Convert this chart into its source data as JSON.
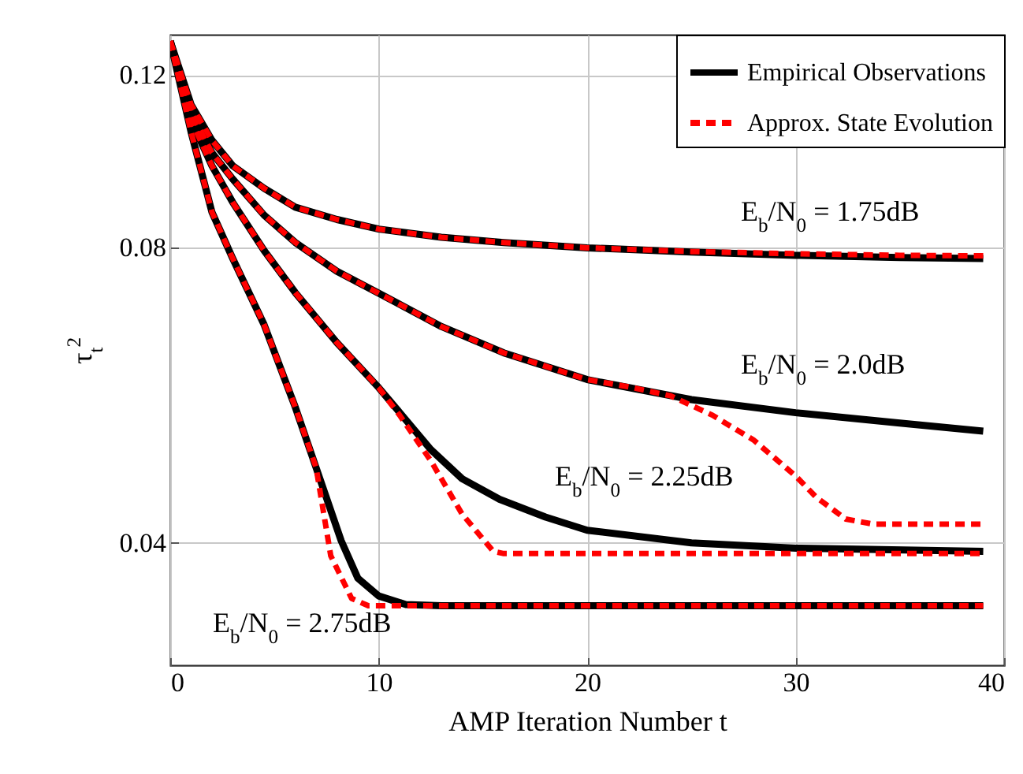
{
  "chart_data": {
    "type": "line",
    "xlabel": "AMP Iteration Number t",
    "ylabel": "τ$_{t}$$^{2}$",
    "xlim": [
      0,
      40
    ],
    "xticks": [
      0,
      10,
      20,
      30,
      40
    ],
    "ylim": [
      0.03,
      0.132
    ],
    "yticks": [
      0.04,
      0.08,
      0.12
    ],
    "log": "y",
    "grid": true,
    "legend": "top right",
    "marker": "none",
    "series": [
      {
        "name": "Empirical Observations",
        "color": "#000000",
        "line_style": "solid",
        "x": [
          0,
          1,
          2,
          3,
          4.5,
          6,
          8,
          10,
          13,
          16,
          20,
          25,
          30,
          35,
          39
        ],
        "values": [
          0.13,
          0.112,
          0.103,
          0.097,
          0.092,
          0.088,
          0.0855,
          0.0836,
          0.082,
          0.081,
          0.08,
          0.0792,
          0.0786,
          0.0782,
          0.078
        ]
      },
      {
        "color": "#000000",
        "line_style": "solid",
        "x": [
          0,
          1,
          2,
          3,
          4.5,
          6,
          8,
          10,
          13,
          16,
          20,
          25,
          30,
          35,
          39
        ],
        "values": [
          0.13,
          0.11,
          0.1,
          0.094,
          0.0864,
          0.081,
          0.0757,
          0.0719,
          0.0665,
          0.0625,
          0.0587,
          0.056,
          0.0543,
          0.053,
          0.052
        ]
      },
      {
        "color": "#000000",
        "line_style": "solid",
        "x": [
          0,
          1,
          2,
          3,
          4.5,
          6,
          8,
          10,
          12.5,
          14,
          15.8,
          18,
          20,
          25,
          30,
          39
        ],
        "values": [
          0.13,
          0.108,
          0.097,
          0.089,
          0.0795,
          0.072,
          0.064,
          0.0576,
          0.0498,
          0.0465,
          0.0443,
          0.0425,
          0.0412,
          0.04,
          0.0395,
          0.0392
        ]
      },
      {
        "color": "#000000",
        "line_style": "solid",
        "x": [
          0,
          1,
          2,
          3,
          4.5,
          6,
          7,
          8.2,
          9,
          10,
          11.3,
          13,
          20,
          30,
          39
        ],
        "values": [
          0.13,
          0.105,
          0.087,
          0.078,
          0.0668,
          0.055,
          0.0477,
          0.0402,
          0.0368,
          0.0353,
          0.0346,
          0.0345,
          0.0345,
          0.0345,
          0.0345
        ]
      },
      {
        "name": "Approx. State Evolution",
        "color": "#ff0000",
        "line_style": "dashed",
        "x": [
          0,
          1,
          2,
          3,
          4.5,
          6,
          8,
          10,
          13,
          16,
          20,
          25,
          30,
          35,
          39
        ],
        "values": [
          0.13,
          0.112,
          0.103,
          0.097,
          0.092,
          0.088,
          0.0855,
          0.0836,
          0.082,
          0.081,
          0.08,
          0.0793,
          0.0789,
          0.0786,
          0.0785
        ]
      },
      {
        "color": "#ff0000",
        "line_style": "dashed",
        "x": [
          0,
          1,
          2,
          3,
          4.5,
          6,
          8,
          10,
          13,
          16,
          20,
          22,
          24,
          26,
          28,
          30,
          31,
          32.4,
          33.7,
          39
        ],
        "values": [
          0.13,
          0.11,
          0.1,
          0.094,
          0.0864,
          0.081,
          0.0757,
          0.0719,
          0.0665,
          0.0625,
          0.0587,
          0.0577,
          0.0565,
          0.054,
          0.0509,
          0.0468,
          0.0445,
          0.0423,
          0.0418,
          0.0418
        ]
      },
      {
        "color": "#ff0000",
        "line_style": "dashed",
        "x": [
          0,
          1,
          2,
          3,
          4.5,
          6,
          8,
          10,
          11,
          12.5,
          14,
          15.5,
          16,
          20,
          30,
          39
        ],
        "values": [
          0.13,
          0.108,
          0.097,
          0.089,
          0.0795,
          0.072,
          0.064,
          0.0576,
          0.054,
          0.0485,
          0.0428,
          0.0392,
          0.039,
          0.039,
          0.039,
          0.039
        ]
      },
      {
        "color": "#ff0000",
        "line_style": "dashed",
        "x": [
          0,
          1,
          2,
          3,
          4.5,
          6,
          7,
          7.7,
          8.7,
          9.5,
          13,
          20,
          30,
          39
        ],
        "values": [
          0.13,
          0.105,
          0.087,
          0.078,
          0.0668,
          0.055,
          0.0477,
          0.0388,
          0.0351,
          0.0345,
          0.0345,
          0.0345,
          0.0345,
          0.0345
        ]
      }
    ],
    "annotations": [
      "E$_{b}$/N$_{0}$ = 1.75dB",
      "E$_{b}$/N$_{0}$ = 2.0dB",
      "E$_{b}$/N$_{0}$ = 2.25dB",
      "E$_{b}$/N$_{0}$ = 2.75dB"
    ]
  }
}
